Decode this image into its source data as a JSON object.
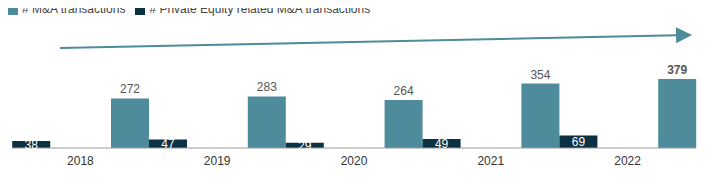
{
  "chart_data": {
    "type": "bar",
    "categories": [
      "2018",
      "2019",
      "2020",
      "2021",
      "2022"
    ],
    "series": [
      {
        "name": "# M&A transactions",
        "color": "#4E8B9B",
        "values": [
          272,
          283,
          264,
          354,
          379
        ]
      },
      {
        "name": "# Private Equity related M&A transactions",
        "color": "#0C3142",
        "values": [
          38,
          47,
          29,
          49,
          69
        ]
      }
    ],
    "data_labels": true,
    "tick_labels": "x",
    "legend": "top-left"
  }
}
